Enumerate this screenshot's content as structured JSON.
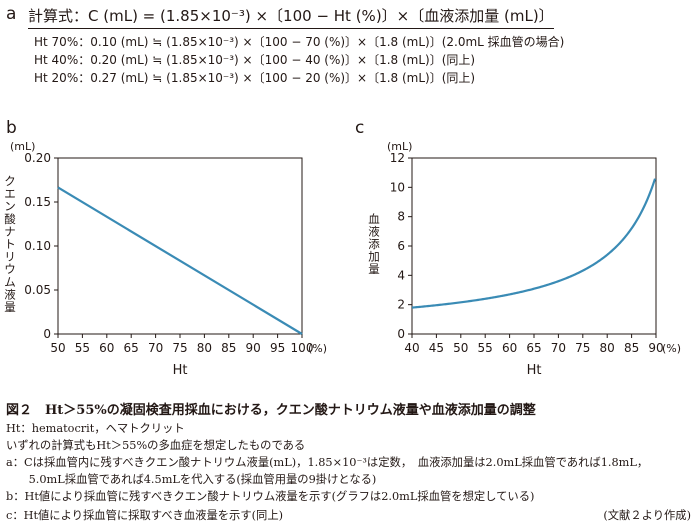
{
  "section_a": {
    "label": "a",
    "formula": "計算式：C (mL) = (1.85×10⁻³) ×〔100 − Ht (%)〕×〔血液添加量 (mL)〕",
    "lines": [
      "Ht 70%：0.10 (mL) ≒ (1.85×10⁻³) ×〔100 − 70 (%)〕×〔1.8 (mL)〕(2.0mL 採血管の場合)",
      "Ht 40%：0.20 (mL) ≒ (1.85×10⁻³) ×〔100 − 40 (%)〕×〔1.8 (mL)〕(同上)",
      "Ht 20%：0.27 (mL) ≒ (1.85×10⁻³) ×〔100 − 20 (%)〕×〔1.8 (mL)〕(同上)"
    ]
  },
  "chart_data": [
    {
      "panel": "b",
      "type": "line",
      "xlabel": "Ht",
      "x_unit": "(%)",
      "ylabel": "クエン酸ナトリウム液量",
      "y_unit": "(mL)",
      "xlim": [
        50,
        100
      ],
      "ylim": [
        0,
        0.2
      ],
      "xticks": [
        50,
        55,
        60,
        65,
        70,
        75,
        80,
        85,
        90,
        95,
        100
      ],
      "yticks": [
        "0",
        "0.05",
        "0.10",
        "0.15",
        "0.20"
      ],
      "ytick_values": [
        0,
        0.05,
        0.1,
        0.15,
        0.2
      ],
      "line_color": "#3a8bb5",
      "series": [
        {
          "x": [
            50,
            100
          ],
          "y": [
            0.1665,
            0
          ]
        }
      ]
    },
    {
      "panel": "c",
      "type": "line",
      "xlabel": "Ht",
      "x_unit": "(%)",
      "ylabel": "血液添加量",
      "y_unit": "(mL)",
      "xlim": [
        40,
        90
      ],
      "ylim": [
        0,
        12
      ],
      "xticks": [
        40,
        45,
        50,
        55,
        60,
        65,
        70,
        75,
        80,
        85,
        90
      ],
      "yticks": [
        "0",
        "2",
        "4",
        "6",
        "8",
        "10",
        "12"
      ],
      "ytick_values": [
        0,
        2,
        4,
        6,
        8,
        10,
        12
      ],
      "line_color": "#3a8bb5",
      "series": [
        {
          "formula": "y = 1.8*60/(100-x)",
          "x_range": [
            40,
            89.9
          ]
        }
      ]
    }
  ],
  "caption": {
    "title": "図２　Ht＞55%の凝固検査用採血における，クエン酸ナトリウム液量や血液添加量の調整",
    "lines": [
      "Ht：hematocrit，ヘマトクリット",
      "いずれの計算式もHt＞55%の多血症を想定したものである",
      "a：Cは採血管内に残すべきクエン酸ナトリウム液量(mL)，1.85×10⁻³は定数，　血液添加量は2.0mL採血管であれば1.8mL，",
      "　　5.0mL採血管であれば4.5mLを代入する(採血管用量の9掛けとなる)",
      "b：Ht値により採血管に残すべきクエン酸ナトリウム液量を示す(グラフは2.0mL採血管を想定している)",
      "c：Ht値により採血管に採取すべき血液量を示す(同上)"
    ],
    "source": "(文献２より作成)"
  }
}
